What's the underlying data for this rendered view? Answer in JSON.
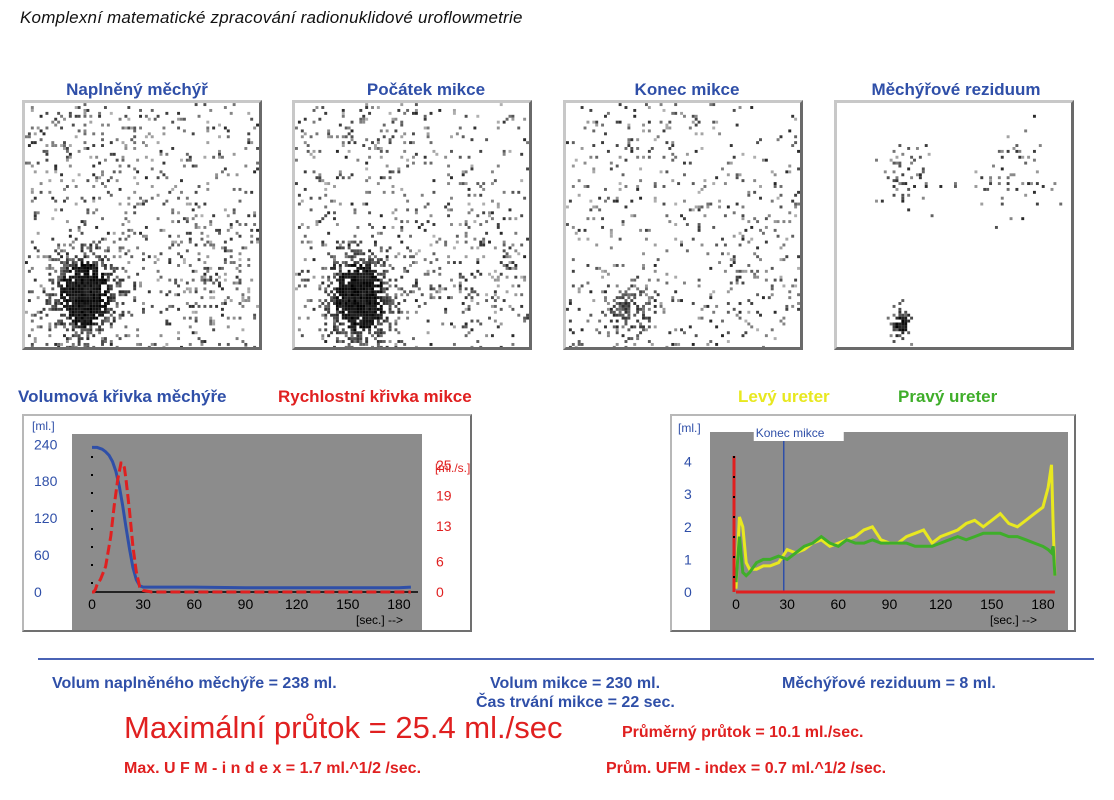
{
  "title": "Komplexní matematické zpracování radionuklidové uroflowmetrie",
  "images": [
    {
      "label": "Naplněný měchýř",
      "state": "full"
    },
    {
      "label": "Počátek mikce",
      "state": "start"
    },
    {
      "label": "Konec mikce",
      "state": "end"
    },
    {
      "label": "Měchýřové reziduum",
      "state": "residual"
    }
  ],
  "left_section": {
    "title_volume": "Volumová křivka měchýře",
    "title_rate": "Rychlostní křivka mikce"
  },
  "right_section": {
    "title_left": "Levý  ureter",
    "title_right": "Pravý ureter"
  },
  "colors": {
    "blue": "#2f4fa8",
    "red": "#e02020",
    "yellow": "#e8e820",
    "green": "#3fae2a",
    "plot_bg": "#8c8c8c"
  },
  "chart_data": [
    {
      "type": "line",
      "title": "Volumová křivka měchýře / Rychlostní křivka mikce",
      "y_unit_left": "[ml.]",
      "y_unit_right": "[ml./s.]",
      "x_unit": "[sec.] -->",
      "xlim": [
        0,
        190
      ],
      "ylim_left": [
        0,
        260
      ],
      "ylim_right": [
        0,
        31.5
      ],
      "x_ticks": [
        "0",
        "30",
        "60",
        "90",
        "120",
        "150",
        "180"
      ],
      "y_ticks_left": [
        "0",
        "60",
        "120",
        "180",
        "240"
      ],
      "y_ticks_right": [
        "0",
        "6",
        "13",
        "19",
        "25"
      ],
      "series": [
        {
          "name": "Volumová křivka měchýře",
          "color": "#2f4fa8",
          "axis": "left",
          "x": [
            0,
            3,
            6,
            8,
            10,
            12,
            14,
            16,
            18,
            20,
            22,
            24,
            26,
            28,
            30,
            35,
            45,
            60,
            90,
            120,
            150,
            180,
            187
          ],
          "y": [
            235,
            235,
            232,
            228,
            222,
            212,
            196,
            172,
            140,
            104,
            70,
            40,
            20,
            10,
            8,
            8,
            8,
            8,
            7,
            7,
            7,
            7,
            8
          ]
        },
        {
          "name": "Rychlostní křivka mikce",
          "color": "#e02020",
          "axis": "right",
          "x": [
            0,
            1,
            2,
            3,
            5,
            8,
            11,
            13,
            15,
            17,
            18,
            19,
            20,
            22,
            24,
            26,
            28,
            30,
            35,
            60,
            90,
            120,
            150,
            180,
            187
          ],
          "y": [
            0,
            0,
            0.5,
            1.5,
            2.5,
            5,
            11,
            17,
            22,
            25.4,
            25.4,
            24.5,
            22,
            16,
            9,
            4,
            1,
            0.3,
            0,
            0,
            0,
            0,
            0,
            0,
            0
          ]
        }
      ]
    },
    {
      "type": "line",
      "title": "Levý ureter / Pravý ureter",
      "y_unit": "[ml.]",
      "x_unit": "[sec.] -->",
      "xlim": [
        0,
        190
      ],
      "ylim": [
        0,
        4.6
      ],
      "x_ticks": [
        "0",
        "30",
        "60",
        "90",
        "120",
        "150",
        "180"
      ],
      "y_ticks": [
        "0",
        "1",
        "2",
        "3",
        "4"
      ],
      "annotation": {
        "label": "Konec mikce",
        "x": 28
      },
      "series": [
        {
          "name": "Levý  ureter",
          "color": "#e8e820",
          "x": [
            0,
            2,
            4,
            6,
            8,
            12,
            16,
            20,
            25,
            30,
            35,
            40,
            45,
            50,
            55,
            60,
            65,
            70,
            75,
            80,
            85,
            90,
            95,
            100,
            105,
            110,
            115,
            120,
            125,
            130,
            135,
            140,
            145,
            150,
            155,
            160,
            165,
            170,
            175,
            180,
            183,
            185,
            186,
            187
          ],
          "y": [
            0.1,
            2.3,
            2.0,
            0.9,
            0.7,
            0.7,
            0.8,
            0.8,
            0.9,
            1.3,
            1.2,
            1.3,
            1.5,
            1.6,
            1.4,
            1.5,
            1.6,
            1.7,
            1.9,
            2.0,
            1.6,
            1.5,
            1.5,
            1.7,
            1.8,
            1.9,
            1.5,
            1.7,
            1.8,
            1.9,
            2.1,
            2.2,
            2.0,
            2.2,
            2.4,
            2.1,
            2.0,
            2.2,
            2.4,
            2.6,
            3.2,
            3.9,
            2.0,
            0.5
          ]
        },
        {
          "name": "Pravý ureter",
          "color": "#3fae2a",
          "x": [
            0,
            2,
            4,
            6,
            8,
            12,
            16,
            20,
            25,
            30,
            35,
            40,
            45,
            50,
            55,
            60,
            65,
            70,
            75,
            80,
            85,
            90,
            95,
            100,
            105,
            110,
            115,
            120,
            125,
            130,
            135,
            140,
            145,
            150,
            155,
            160,
            165,
            170,
            175,
            180,
            183,
            185,
            186,
            187
          ],
          "y": [
            0.3,
            1.7,
            0.6,
            0.5,
            0.6,
            0.9,
            1.0,
            1.0,
            1.1,
            1.0,
            1.2,
            1.4,
            1.5,
            1.7,
            1.5,
            1.4,
            1.6,
            1.5,
            1.5,
            1.6,
            1.5,
            1.5,
            1.5,
            1.5,
            1.4,
            1.4,
            1.4,
            1.5,
            1.6,
            1.7,
            1.6,
            1.7,
            1.8,
            1.8,
            1.8,
            1.7,
            1.7,
            1.6,
            1.5,
            1.4,
            1.3,
            1.2,
            1.4,
            0.5
          ]
        }
      ]
    }
  ],
  "stats": {
    "volume_full": "Volum naplněného měchýře  = 238 ml.",
    "volume_mikce": "Volum mikce  = 230 ml.",
    "residuum": "Měchýřové reziduum  = 8 ml.",
    "duration": "Čas trvání mikce  = 22 sec.",
    "max_flow": "Maximální průtok  =  25.4 ml./sec",
    "avg_flow": "Průměrný  průtok  =   10.1 ml./sec.",
    "max_ufm": "Max.  U F M  - i n d e x  =    1.7 ml.^1/2 /sec.",
    "avg_ufm": "Prům. UFM - index =    0.7 ml.^1/2 /sec."
  }
}
